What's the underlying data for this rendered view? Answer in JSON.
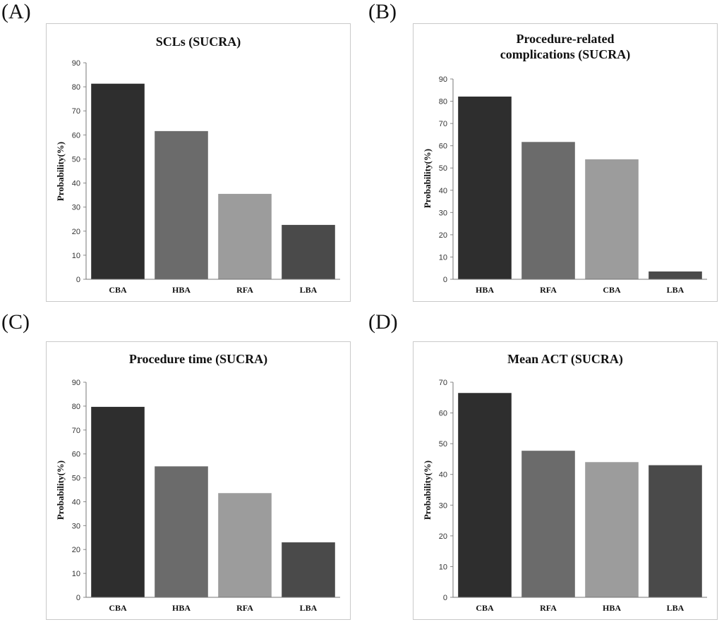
{
  "panels": [
    {
      "label": "(A)"
    },
    {
      "label": "(B)"
    },
    {
      "label": "(C)"
    },
    {
      "label": "(D)"
    }
  ],
  "chart_data": [
    {
      "type": "bar",
      "title": "SCLs (SUCRA)",
      "ylabel": "Probability(%)",
      "xlabel": "",
      "categories": [
        "CBA",
        "HBA",
        "RFA",
        "LBA"
      ],
      "values": [
        81.3,
        61.6,
        35.5,
        22.6
      ],
      "colors": [
        "#2e2e2e",
        "#6b6b6b",
        "#9c9c9c",
        "#4a4a4a"
      ],
      "ylim": [
        0,
        90
      ],
      "yticks": [
        0,
        10,
        20,
        30,
        40,
        50,
        60,
        70,
        80,
        90
      ]
    },
    {
      "type": "bar",
      "title": "Procedure-related complications (SUCRA)",
      "title_lines": [
        "Procedure-related",
        "complications (SUCRA)"
      ],
      "ylabel": "Probability(%)",
      "xlabel": "",
      "categories": [
        "HBA",
        "RFA",
        "CBA",
        "LBA"
      ],
      "values": [
        82.1,
        61.7,
        53.9,
        3.5
      ],
      "colors": [
        "#2e2e2e",
        "#6b6b6b",
        "#9c9c9c",
        "#4a4a4a"
      ],
      "ylim": [
        0,
        90
      ],
      "yticks": [
        0,
        10,
        20,
        30,
        40,
        50,
        60,
        70,
        80,
        90
      ]
    },
    {
      "type": "bar",
      "title": "Procedure time (SUCRA)",
      "ylabel": "Probability(%)",
      "xlabel": "",
      "categories": [
        "CBA",
        "HBA",
        "RFA",
        "LBA"
      ],
      "values": [
        79.7,
        54.8,
        43.6,
        23.0
      ],
      "colors": [
        "#2e2e2e",
        "#6b6b6b",
        "#9c9c9c",
        "#4a4a4a"
      ],
      "ylim": [
        0,
        90
      ],
      "yticks": [
        0,
        10,
        20,
        30,
        40,
        50,
        60,
        70,
        80,
        90
      ]
    },
    {
      "type": "bar",
      "title": "Mean ACT (SUCRA)",
      "ylabel": "Probability(%)",
      "xlabel": "",
      "categories": [
        "CBA",
        "RFA",
        "HBA",
        "LBA"
      ],
      "values": [
        66.5,
        47.7,
        44.0,
        43.0
      ],
      "colors": [
        "#2e2e2e",
        "#6b6b6b",
        "#9c9c9c",
        "#4a4a4a"
      ],
      "ylim": [
        0,
        70
      ],
      "yticks": [
        0,
        10,
        20,
        30,
        40,
        50,
        60,
        70
      ]
    }
  ]
}
